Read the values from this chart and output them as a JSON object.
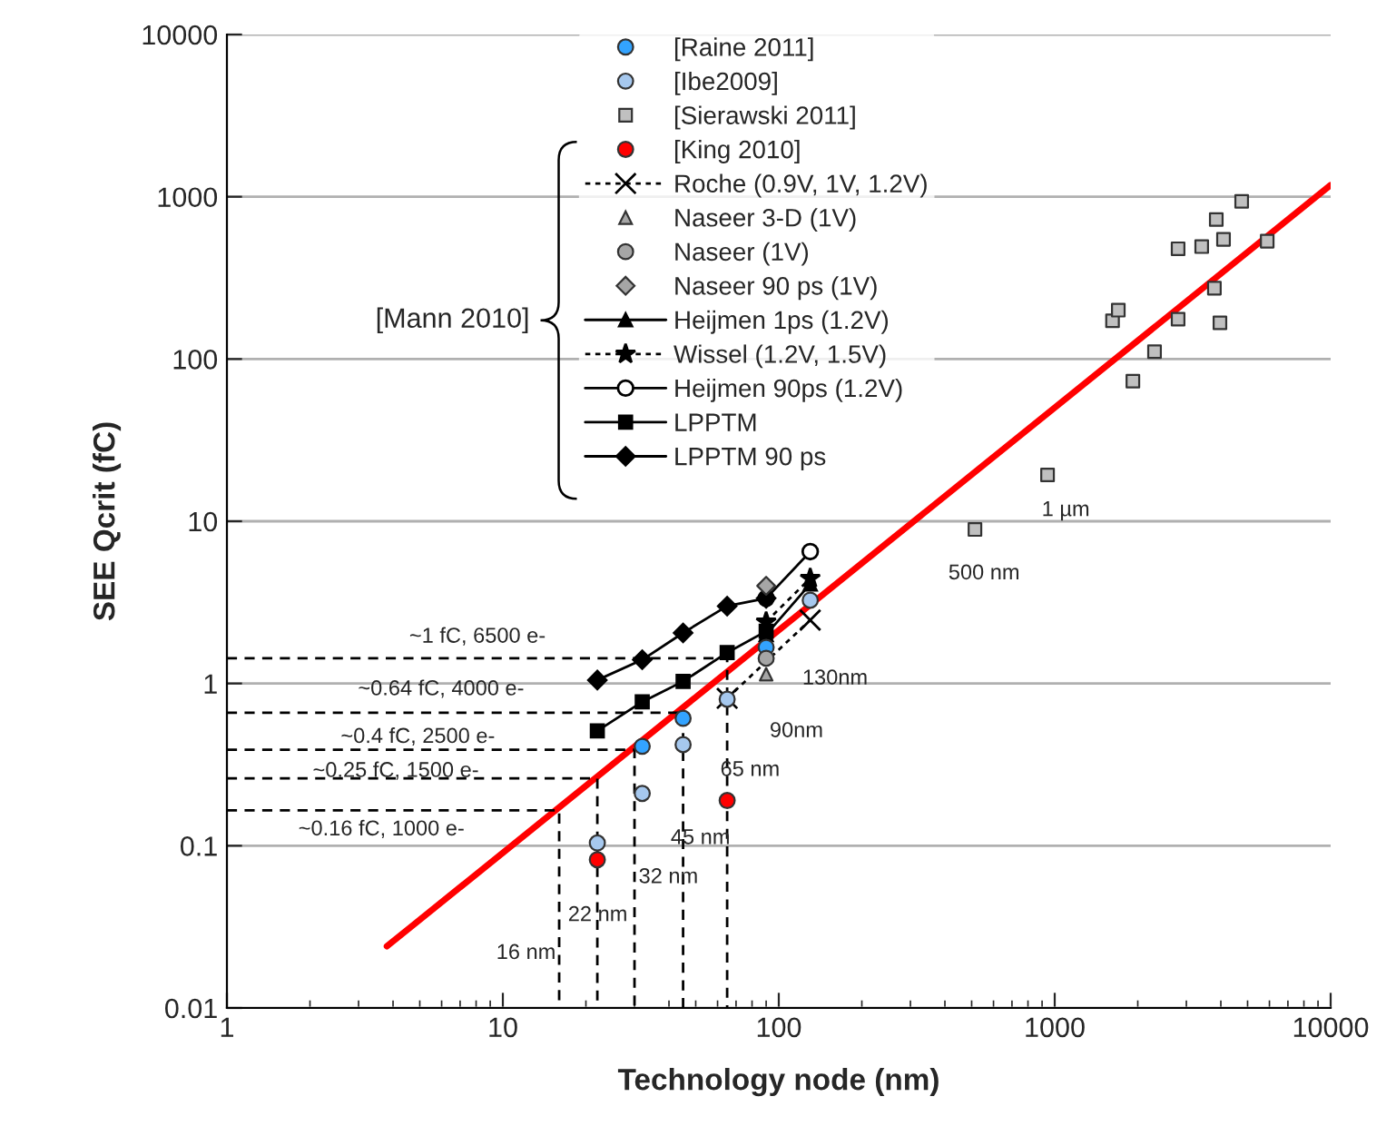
{
  "chart_data": {
    "type": "scatter",
    "xlabel": "Technology node (nm)",
    "ylabel": "SEE Qcrit (fC)",
    "log": "xy",
    "xlim": [
      1,
      10000
    ],
    "xticks": [
      1,
      10,
      100,
      1000,
      10000
    ],
    "ylim": [
      0.01,
      10000
    ],
    "yticks": [
      0.01,
      0.1,
      1,
      10,
      100,
      1000,
      10000
    ],
    "grid": "y",
    "legend": "top",
    "series": [
      {
        "name": "[Raine 2011]",
        "type": "scatter",
        "marker": "circle",
        "color": "#33a3ff",
        "x": [
          32,
          45,
          90
        ],
        "values": [
          0.41,
          0.61,
          1.67
        ]
      },
      {
        "name": "[Ibe2009]",
        "type": "scatter",
        "marker": "circle",
        "color": "#a6c8ee",
        "x": [
          22,
          32,
          45,
          65,
          130
        ],
        "values": [
          0.104,
          0.21,
          0.42,
          0.8,
          3.26
        ]
      },
      {
        "name": "[Sierawski 2011]",
        "type": "scatter",
        "marker": "square",
        "color": "#c0c0c0",
        "x": [
          514,
          942,
          1920,
          2300,
          1620,
          1700,
          2800,
          2800,
          3410,
          3790,
          3970,
          3850,
          4090,
          4760,
          5890
        ],
        "values": [
          8.9,
          19.3,
          73,
          111,
          172,
          200,
          176,
          478,
          493,
          273,
          167,
          724,
          546,
          937,
          532
        ]
      },
      {
        "name": "[King 2010]",
        "type": "scatter",
        "marker": "circle",
        "color": "#ff0000",
        "x": [
          22,
          65
        ],
        "values": [
          0.082,
          0.19
        ]
      },
      {
        "name": "Roche (0.9V, 1V, 1.2V)",
        "type": "line",
        "marker": "cross",
        "line_style": "dotted",
        "color": "#000000",
        "x": [
          65,
          130
        ],
        "values": [
          0.81,
          2.46
        ]
      },
      {
        "name": "Naseer 3-D (1V)",
        "type": "scatter",
        "marker": "triangle",
        "color": "#a6a6a6",
        "x": [
          90
        ],
        "values": [
          1.14
        ]
      },
      {
        "name": "Naseer (1V)",
        "type": "scatter",
        "marker": "circle",
        "color": "#a6a6a6",
        "x": [
          90
        ],
        "values": [
          1.43
        ]
      },
      {
        "name": "Naseer 90 ps (1V)",
        "type": "scatter",
        "marker": "diamond",
        "color": "#a6a6a6",
        "x": [
          90
        ],
        "values": [
          4.0
        ]
      },
      {
        "name": "Heijmen 1ps (1.2V)",
        "type": "line",
        "marker": "triangle",
        "line_style": "solid",
        "color": "#000000",
        "x": [
          90,
          130
        ],
        "values": [
          2.0,
          4.1
        ]
      },
      {
        "name": "Wissel (1.2V, 1.5V)",
        "type": "line",
        "marker": "star",
        "line_style": "dotted",
        "color": "#000000",
        "x": [
          90,
          130
        ],
        "values": [
          2.4,
          4.45
        ]
      },
      {
        "name": "Heijmen 90ps (1.2V)",
        "type": "line",
        "marker": "open_circle",
        "line_style": "solid",
        "color": "#000000",
        "x": [
          90,
          130
        ],
        "values": [
          3.35,
          6.5
        ]
      },
      {
        "name": "LPPTM",
        "type": "line",
        "marker": "square",
        "line_style": "solid",
        "color": "#000000",
        "x": [
          22,
          32,
          45,
          65,
          90
        ],
        "values": [
          0.51,
          0.77,
          1.03,
          1.55,
          2.1
        ]
      },
      {
        "name": "LPPTM 90 ps",
        "type": "line",
        "marker": "diamond",
        "line_style": "solid",
        "color": "#000000",
        "x": [
          22,
          32,
          45,
          65,
          90
        ],
        "values": [
          1.05,
          1.4,
          2.05,
          3.0,
          3.35
        ]
      },
      {
        "type": "line",
        "marker": "none",
        "line_style": "solid",
        "color": "#ff0000",
        "x": [
          3.8,
          10000
        ],
        "values": [
          0.024,
          1180
        ]
      },
      {
        "type": "line",
        "marker": "none",
        "line_style": "dashed",
        "color": "#000000",
        "x": [
          1,
          16,
          16
        ],
        "values": [
          0.165,
          0.165,
          0.01
        ]
      },
      {
        "type": "line",
        "marker": "none",
        "line_style": "dashed",
        "color": "#000000",
        "x": [
          1,
          22,
          22
        ],
        "values": [
          0.26,
          0.26,
          0.01
        ]
      },
      {
        "type": "line",
        "marker": "none",
        "line_style": "dashed",
        "color": "#000000",
        "x": [
          1,
          30,
          30
        ],
        "values": [
          0.39,
          0.39,
          0.01
        ]
      },
      {
        "type": "line",
        "marker": "none",
        "line_style": "dashed",
        "color": "#000000",
        "x": [
          1,
          45,
          45
        ],
        "values": [
          0.66,
          0.66,
          0.01
        ]
      },
      {
        "type": "line",
        "marker": "none",
        "line_style": "dashed",
        "color": "#000000",
        "x": [
          1,
          65,
          65
        ],
        "values": [
          1.43,
          1.43,
          0.01
        ]
      }
    ],
    "annotations": [
      "[Mann 2010]",
      "~1 fC, 6500 e-",
      "~0.64 fC, 4000 e-",
      "~0.4 fC, 2500 e-",
      "~0.25 fC, 1500 e-",
      "~0.16 fC, 1000 e-",
      "16 nm",
      "22 nm",
      "32 nm",
      "45 nm",
      "65 nm",
      "90nm",
      "130nm",
      "500 nm",
      "1 µm"
    ]
  }
}
